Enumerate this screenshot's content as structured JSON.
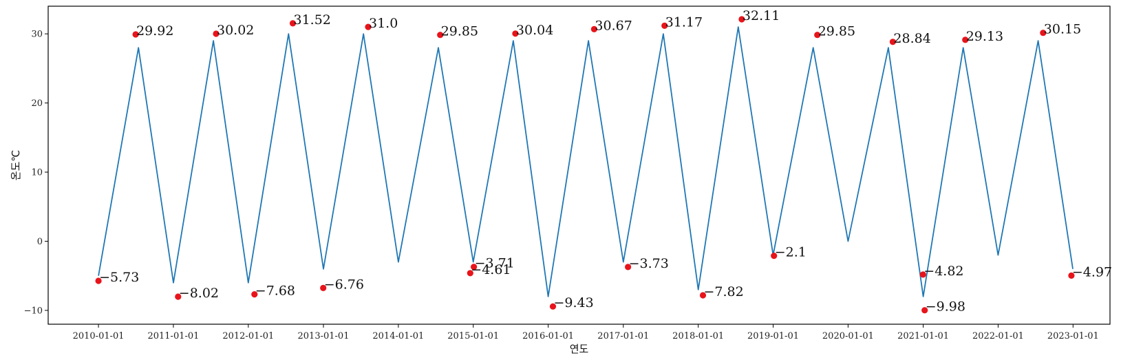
{
  "chart_data": {
    "type": "line",
    "title": "",
    "xlabel": "연도",
    "ylabel": "온도℃",
    "xlim": [
      "2009-05-01",
      "2023-06-30"
    ],
    "ylim": [
      -12,
      34
    ],
    "y_ticks": [
      -10,
      0,
      10,
      20,
      30
    ],
    "y_tick_labels": [
      "−10",
      "0",
      "10",
      "20",
      "30"
    ],
    "x_ticks": [
      "2010-01-01",
      "2011-01-01",
      "2012-01-01",
      "2013-01-01",
      "2014-01-01",
      "2015-01-01",
      "2016-01-01",
      "2017-01-01",
      "2018-01-01",
      "2019-01-01",
      "2020-01-01",
      "2021-01-01",
      "2022-01-01",
      "2023-01-01"
    ],
    "grid": false,
    "line_color": "#1f77b4",
    "marker_color": "#e8141b",
    "series": [
      {
        "values_note": "",
        "x": [
          "2010-01-01",
          "2010-07-15",
          "2011-01-01",
          "2011-07-15",
          "2012-01-01",
          "2012-07-15",
          "2013-01-01",
          "2013-07-15",
          "2014-01-01",
          "2014-07-15",
          "2015-01-01",
          "2015-07-15",
          "2016-01-01",
          "2016-07-15",
          "2017-01-01",
          "2017-07-15",
          "2018-01-01",
          "2018-07-15",
          "2019-01-01",
          "2019-07-15",
          "2020-01-01",
          "2020-07-15",
          "2021-01-01",
          "2021-07-15",
          "2022-01-01",
          "2022-07-15",
          "2022-12-31"
        ],
        "y": [
          -5,
          28,
          -6,
          29,
          -6,
          30,
          -4,
          30,
          -3,
          28,
          -3,
          29,
          -8,
          29,
          -3,
          30,
          -7,
          31,
          -2,
          28,
          0,
          28,
          -8,
          28,
          -2,
          29,
          -4
        ]
      }
    ],
    "annotations": [
      {
        "x": "2010-01-01",
        "y": -5.73,
        "label": "−5.73"
      },
      {
        "x": "2010-07-01",
        "y": 29.92,
        "label": "29.92"
      },
      {
        "x": "2011-01-24",
        "y": -8.02,
        "label": "−8.02"
      },
      {
        "x": "2011-07-28",
        "y": 30.02,
        "label": "30.02"
      },
      {
        "x": "2012-01-31",
        "y": -7.68,
        "label": "−7.68"
      },
      {
        "x": "2012-08-05",
        "y": 31.52,
        "label": "31.52"
      },
      {
        "x": "2012-12-31",
        "y": -6.76,
        "label": "−6.76"
      },
      {
        "x": "2013-08-07",
        "y": 31.0,
        "label": "31.0"
      },
      {
        "x": "2014-07-24",
        "y": 29.85,
        "label": "29.85"
      },
      {
        "x": "2014-12-17",
        "y": -4.61,
        "label": "−4.61"
      },
      {
        "x": "2015-01-04",
        "y": -3.71,
        "label": "−3.71"
      },
      {
        "x": "2015-07-25",
        "y": 30.04,
        "label": "30.04"
      },
      {
        "x": "2016-01-24",
        "y": -9.43,
        "label": "−9.43"
      },
      {
        "x": "2016-08-12",
        "y": 30.67,
        "label": "30.67"
      },
      {
        "x": "2017-01-24",
        "y": -3.73,
        "label": "−3.73"
      },
      {
        "x": "2017-07-21",
        "y": 31.17,
        "label": "31.17"
      },
      {
        "x": "2018-01-24",
        "y": -7.82,
        "label": "−7.82"
      },
      {
        "x": "2018-08-01",
        "y": 32.11,
        "label": "32.11"
      },
      {
        "x": "2019-01-05",
        "y": -2.1,
        "label": "−2.1"
      },
      {
        "x": "2019-08-04",
        "y": 29.85,
        "label": "29.85"
      },
      {
        "x": "2020-08-06",
        "y": 28.84,
        "label": "28.84"
      },
      {
        "x": "2020-12-31",
        "y": -4.82,
        "label": "−4.82"
      },
      {
        "x": "2021-01-08",
        "y": -9.98,
        "label": "−9.98"
      },
      {
        "x": "2021-07-25",
        "y": 29.13,
        "label": "29.13"
      },
      {
        "x": "2022-08-08",
        "y": 30.15,
        "label": "30.15"
      },
      {
        "x": "2022-12-24",
        "y": -4.97,
        "label": "−4.97"
      }
    ]
  }
}
